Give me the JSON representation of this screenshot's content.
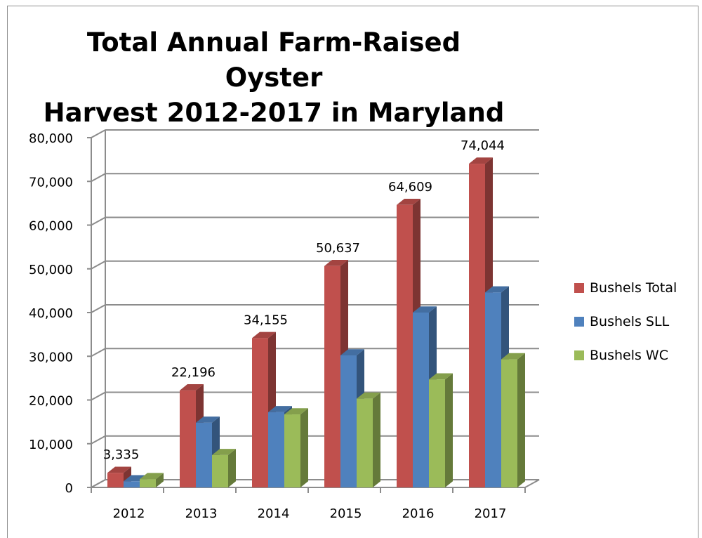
{
  "chart_data": {
    "type": "bar",
    "title": "Total Annual Farm-Raised Oyster Harvest 2012-2017 in Maryland",
    "title_lines": [
      "Total Annual Farm-Raised Oyster",
      "Harvest 2012-2017 in Maryland"
    ],
    "categories": [
      "2012",
      "2013",
      "2014",
      "2015",
      "2016",
      "2017"
    ],
    "series": [
      {
        "name": "Bushels Total",
        "color": "#c0504d",
        "values": [
          3335,
          22196,
          34155,
          50637,
          64609,
          74044
        ]
      },
      {
        "name": "Bushels SLL",
        "color": "#4f81bd",
        "values": [
          1400,
          14800,
          17200,
          30200,
          40000,
          44600
        ]
      },
      {
        "name": "Bushels WC",
        "color": "#9bbb59",
        "values": [
          1900,
          7400,
          16700,
          20300,
          24700,
          29300
        ]
      }
    ],
    "data_labels": [
      "3,335",
      "22,196",
      "34,155",
      "50,637",
      "64,609",
      "74,044"
    ],
    "ylim": [
      0,
      80000
    ],
    "yticks": [
      0,
      10000,
      20000,
      30000,
      40000,
      50000,
      60000,
      70000,
      80000
    ],
    "ytick_labels": [
      "0",
      "10,000",
      "20,000",
      "30,000",
      "40,000",
      "50,000",
      "60,000",
      "70,000",
      "80,000"
    ],
    "grid": true,
    "legend": "right",
    "style": "3d-clustered-column"
  }
}
